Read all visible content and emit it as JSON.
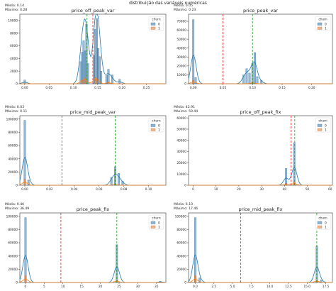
{
  "suptitle": "distribuição das variáveis numéricas",
  "colors": {
    "churn0": "#3a7fb5",
    "churn1": "#e8823a",
    "mean_line": "#e02020",
    "max_line": "#1a9a1a",
    "kde0": "#1f77b4",
    "kde1": "#ff7f0e"
  },
  "chart_data": [
    {
      "type": "bar",
      "title": "price_off_peak_var",
      "stats": [
        "Média: 0.14",
        "Máximo: 0.28"
      ],
      "legend": {
        "title": "churn",
        "entries": [
          "0",
          "1"
        ],
        "placement": "top-right"
      },
      "xlim": [
        -0.01,
        0.29
      ],
      "ylim": [
        0,
        11000
      ],
      "xticks": [
        "0.00",
        "0.05",
        "0.10",
        "0.15",
        "0.20",
        "0.25"
      ],
      "xtick_values": [
        0,
        0.05,
        0.1,
        0.15,
        0.2,
        0.25
      ],
      "yticks": [
        0,
        2000,
        4000,
        6000,
        8000,
        10000
      ],
      "mean": 0.14,
      "max": 0.28,
      "max_line_x": 0.128,
      "series": [
        {
          "name": "0",
          "bins": [
            [
              0.0,
              600
            ],
            [
              0.115,
              3500
            ],
            [
              0.118,
              5000
            ],
            [
              0.121,
              6800
            ],
            [
              0.124,
              5200
            ],
            [
              0.127,
              9400
            ],
            [
              0.13,
              3200
            ],
            [
              0.142,
              4500
            ],
            [
              0.145,
              8600
            ],
            [
              0.148,
              10300
            ],
            [
              0.151,
              5600
            ],
            [
              0.154,
              4300
            ],
            [
              0.157,
              2000
            ],
            [
              0.168,
              1300
            ],
            [
              0.172,
              2300
            ],
            [
              0.18,
              1400
            ],
            [
              0.195,
              700
            ]
          ]
        },
        {
          "name": "1",
          "bins": [
            [
              0.118,
              600
            ],
            [
              0.124,
              900
            ],
            [
              0.145,
              1000
            ],
            [
              0.148,
              700
            ],
            [
              0.172,
              300
            ]
          ]
        }
      ]
    },
    {
      "type": "bar",
      "title": "price_peak_var",
      "stats": [
        "Média: 0.05",
        "Máximo: 0.23"
      ],
      "legend": {
        "title": "churn",
        "entries": [
          "0",
          "1"
        ],
        "placement": "top-right"
      },
      "xlim": [
        -0.008,
        0.235
      ],
      "ylim": [
        0,
        78000
      ],
      "xticks": [
        "0.00",
        "0.05",
        "0.10",
        "0.15",
        "0.20"
      ],
      "xtick_values": [
        0,
        0.05,
        0.1,
        0.15,
        0.2
      ],
      "yticks": [
        0,
        10000,
        20000,
        30000,
        40000,
        50000,
        60000,
        70000
      ],
      "mean": 0.05,
      "max": 0.23,
      "max_line_x": 0.1,
      "series": [
        {
          "name": "0",
          "bins": [
            [
              0.0,
              72000
            ],
            [
              0.004,
              7000
            ],
            [
              0.085,
              10000
            ],
            [
              0.09,
              17000
            ],
            [
              0.095,
              12000
            ],
            [
              0.1,
              23000
            ],
            [
              0.104,
              35000
            ],
            [
              0.108,
              8000
            ],
            [
              0.115,
              4000
            ]
          ]
        },
        {
          "name": "1",
          "bins": [
            [
              0.0,
              4000
            ],
            [
              0.1,
              2000
            ]
          ]
        }
      ]
    },
    {
      "type": "bar",
      "title": "price_mid_peak_var",
      "stats": [
        "Média: 0.03",
        "Máximo: 0.11"
      ],
      "legend": {
        "title": "churn",
        "entries": [
          "0",
          "1"
        ],
        "placement": "top-right"
      },
      "xlim": [
        -0.004,
        0.114
      ],
      "ylim": [
        0,
        105000
      ],
      "xticks": [
        "0.00",
        "0.02",
        "0.04",
        "0.06",
        "0.08",
        "0.10"
      ],
      "xtick_values": [
        0,
        0.02,
        0.04,
        0.06,
        0.08,
        0.1
      ],
      "yticks": [
        0,
        20000,
        40000,
        60000,
        80000,
        100000
      ],
      "mean": 0.03,
      "max": 0.11,
      "max_line_x": 0.073,
      "series": [
        {
          "name": "0",
          "bins": [
            [
              0.0,
              98000
            ],
            [
              0.003,
              8000
            ],
            [
              0.07,
              12000
            ],
            [
              0.073,
              28000
            ],
            [
              0.076,
              18000
            ],
            [
              0.079,
              6000
            ]
          ]
        },
        {
          "name": "1",
          "bins": [
            [
              0.0,
              9000
            ],
            [
              0.073,
              2000
            ]
          ]
        }
      ]
    },
    {
      "type": "bar",
      "title": "price_off_peak_fix",
      "stats": [
        "Média: 42.91",
        "Máximo: 59.44"
      ],
      "legend": {
        "title": "churn",
        "entries": [
          "0",
          "1"
        ],
        "placement": "top-right"
      },
      "xlim": [
        -2,
        61
      ],
      "ylim": [
        0,
        62000
      ],
      "xticks": [
        "0",
        "10",
        "20",
        "30",
        "40",
        "50",
        "60"
      ],
      "xtick_values": [
        0,
        10,
        20,
        30,
        40,
        50,
        60
      ],
      "yticks": [
        0,
        10000,
        20000,
        30000,
        40000,
        50000,
        60000
      ],
      "mean": 42.91,
      "max": 59.44,
      "max_line_x": 44.5,
      "series": [
        {
          "name": "0",
          "bins": [
            [
              40.7,
              15000
            ],
            [
              44.3,
              38000
            ]
          ]
        },
        {
          "name": "1",
          "bins": [
            [
              40.7,
              1500
            ],
            [
              44.3,
              3000
            ]
          ]
        }
      ]
    },
    {
      "type": "bar",
      "title": "price_peak_fix",
      "stats": [
        "Média: 9.46",
        "Máximo: 36.49"
      ],
      "legend": {
        "title": "churn",
        "entries": [
          "0",
          "1"
        ],
        "placement": "top-right"
      },
      "xlim": [
        -1.5,
        37.5
      ],
      "ylim": [
        0,
        105000
      ],
      "xticks": [
        "0",
        "5",
        "10",
        "15",
        "20",
        "25",
        "30",
        "35"
      ],
      "xtick_values": [
        0,
        5,
        10,
        15,
        20,
        25,
        30,
        35
      ],
      "yticks": [
        0,
        20000,
        40000,
        60000,
        80000,
        100000
      ],
      "mean": 9.46,
      "max": 36.49,
      "max_line_x": 24.4,
      "series": [
        {
          "name": "0",
          "bins": [
            [
              0,
              98000
            ],
            [
              24.4,
              57000
            ],
            [
              36,
              2000
            ]
          ]
        },
        {
          "name": "1",
          "bins": [
            [
              0,
              10000
            ],
            [
              24.4,
              4000
            ]
          ]
        }
      ]
    },
    {
      "type": "bar",
      "title": "price_mid_peak_fix",
      "stats": [
        "Média: 6.10",
        "Máximo: 17.46"
      ],
      "legend": {
        "title": "churn",
        "entries": [
          "0",
          "1"
        ],
        "placement": "top-right"
      },
      "xlim": [
        -0.9,
        18.4
      ],
      "ylim": [
        0,
        105000
      ],
      "xticks": [
        "0.0",
        "2.5",
        "5.0",
        "7.5",
        "10.0",
        "12.5",
        "15.0",
        "17.5"
      ],
      "xtick_values": [
        0,
        2.5,
        5.0,
        7.5,
        10.0,
        12.5,
        15.0,
        17.5
      ],
      "yticks": [
        0,
        20000,
        40000,
        60000,
        80000,
        100000
      ],
      "mean": 6.1,
      "max": 17.46,
      "max_line_x": 16.3,
      "series": [
        {
          "name": "0",
          "bins": [
            [
              0,
              98000
            ],
            [
              0.6,
              7000
            ],
            [
              16.3,
              55000
            ],
            [
              16.9,
              4000
            ]
          ]
        },
        {
          "name": "1",
          "bins": [
            [
              0,
              10000
            ],
            [
              16.3,
              4000
            ]
          ]
        }
      ]
    }
  ]
}
